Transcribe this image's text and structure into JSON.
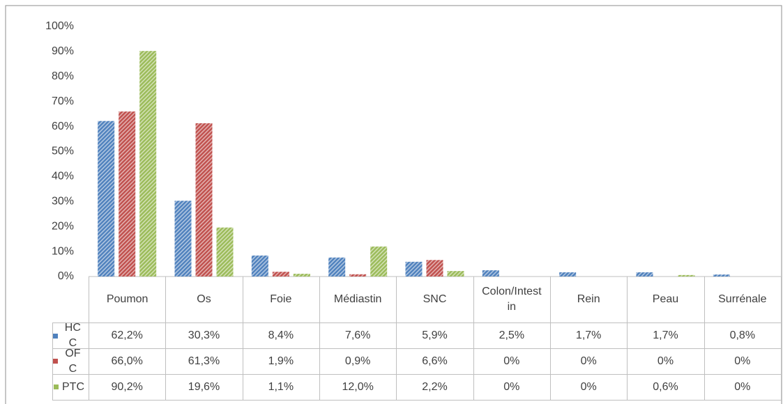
{
  "chart_data": {
    "type": "bar",
    "categories": [
      "Poumon",
      "Os",
      "Foie",
      "Médiastin",
      "SNC",
      "Colon/Intestin",
      "Rein",
      "Peau",
      "Surrénale"
    ],
    "series": [
      {
        "name": "HCC",
        "color": "#4f81bd",
        "values": [
          62.2,
          30.3,
          8.4,
          7.6,
          5.9,
          2.5,
          1.7,
          1.7,
          0.8
        ],
        "value_labels": [
          "62,2%",
          "30,3%",
          "8,4%",
          "7,6%",
          "5,9%",
          "2,5%",
          "1,7%",
          "1,7%",
          "0,8%"
        ]
      },
      {
        "name": "OFC",
        "color": "#c0504d",
        "values": [
          66.0,
          61.3,
          1.9,
          0.9,
          6.6,
          0,
          0,
          0,
          0
        ],
        "value_labels": [
          "66,0%",
          "61,3%",
          "1,9%",
          "0,9%",
          "6,6%",
          "0%",
          "0%",
          "0%",
          "0%"
        ]
      },
      {
        "name": "PTC",
        "color": "#9bbb59",
        "values": [
          90.2,
          19.6,
          1.1,
          12.0,
          2.2,
          0,
          0,
          0.6,
          0
        ],
        "value_labels": [
          "90,2%",
          "19,6%",
          "1,1%",
          "12,0%",
          "2,2%",
          "0%",
          "0%",
          "0,6%",
          "0%"
        ]
      }
    ],
    "ylim": [
      0,
      100
    ],
    "yticks": [
      {
        "value": 0,
        "label": "0%"
      },
      {
        "value": 10,
        "label": "10%"
      },
      {
        "value": 20,
        "label": "20%"
      },
      {
        "value": 30,
        "label": "30%"
      },
      {
        "value": 40,
        "label": "40%"
      },
      {
        "value": 50,
        "label": "50%"
      },
      {
        "value": 60,
        "label": "60%"
      },
      {
        "value": 70,
        "label": "70%"
      },
      {
        "value": 80,
        "label": "80%"
      },
      {
        "value": 90,
        "label": "90%"
      },
      {
        "value": 100,
        "label": "100%"
      }
    ],
    "grid": false
  }
}
